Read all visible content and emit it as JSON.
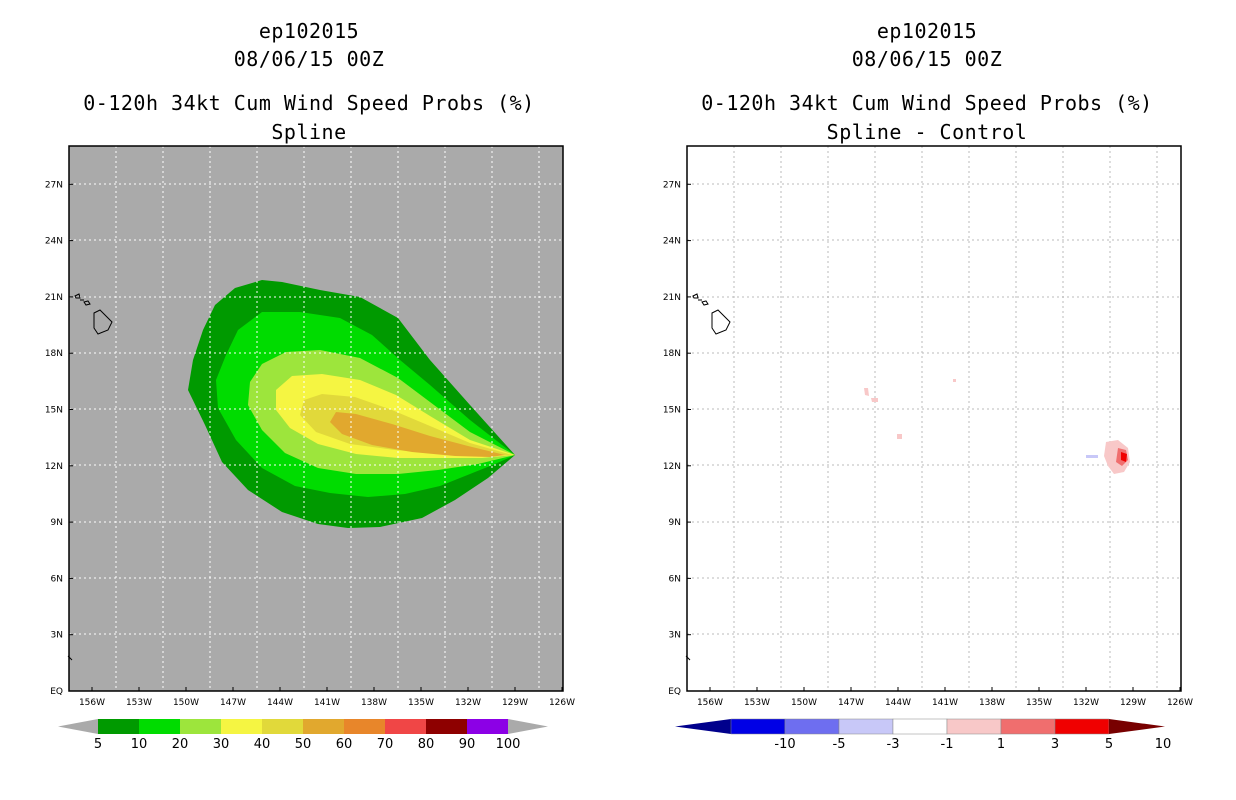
{
  "left": {
    "title_storm": "ep102015",
    "title_time": "08/06/15 00Z",
    "title_product": "0-120h 34kt Cum Wind Speed Probs (%)",
    "title_subtitle": "Spline",
    "lat_labels": [
      "EQ",
      "3N",
      "6N",
      "9N",
      "12N",
      "15N",
      "18N",
      "21N",
      "24N",
      "27N"
    ],
    "lon_labels": [
      "156W",
      "153W",
      "150W",
      "147W",
      "144W",
      "141W",
      "138W",
      "135W",
      "132W",
      "129W",
      "126W"
    ],
    "colorbar_labels": [
      "5",
      "10",
      "20",
      "30",
      "40",
      "50",
      "60",
      "70",
      "80",
      "90",
      "100"
    ],
    "colorbar_colors": [
      "#009a00",
      "#00dc00",
      "#9de53c",
      "#f5f542",
      "#e1d93a",
      "#e1a82e",
      "#e8862a",
      "#f04646",
      "#8e0000",
      "#8c00e6"
    ],
    "background_color": "#aaaaaa"
  },
  "right": {
    "title_storm": "ep102015",
    "title_time": "08/06/15 00Z",
    "title_product": "0-120h 34kt Cum Wind Speed Probs (%)",
    "title_subtitle": "Spline - Control",
    "lat_labels": [
      "EQ",
      "3N",
      "6N",
      "9N",
      "12N",
      "15N",
      "18N",
      "21N",
      "24N",
      "27N"
    ],
    "lon_labels": [
      "156W",
      "153W",
      "150W",
      "147W",
      "144W",
      "141W",
      "138W",
      "135W",
      "132W",
      "129W",
      "126W"
    ],
    "colorbar_labels": [
      "-10",
      "-5",
      "-3",
      "-1",
      "1",
      "3",
      "5",
      "10"
    ],
    "colorbar_colors": [
      "#0000e6",
      "#6e6ef0",
      "#c8c8f8",
      "#ffffff",
      "#f8c8c8",
      "#f06e6e",
      "#f00000"
    ],
    "background_color": "#ffffff"
  },
  "icons": [
    "hawaii-coastline-icon"
  ]
}
